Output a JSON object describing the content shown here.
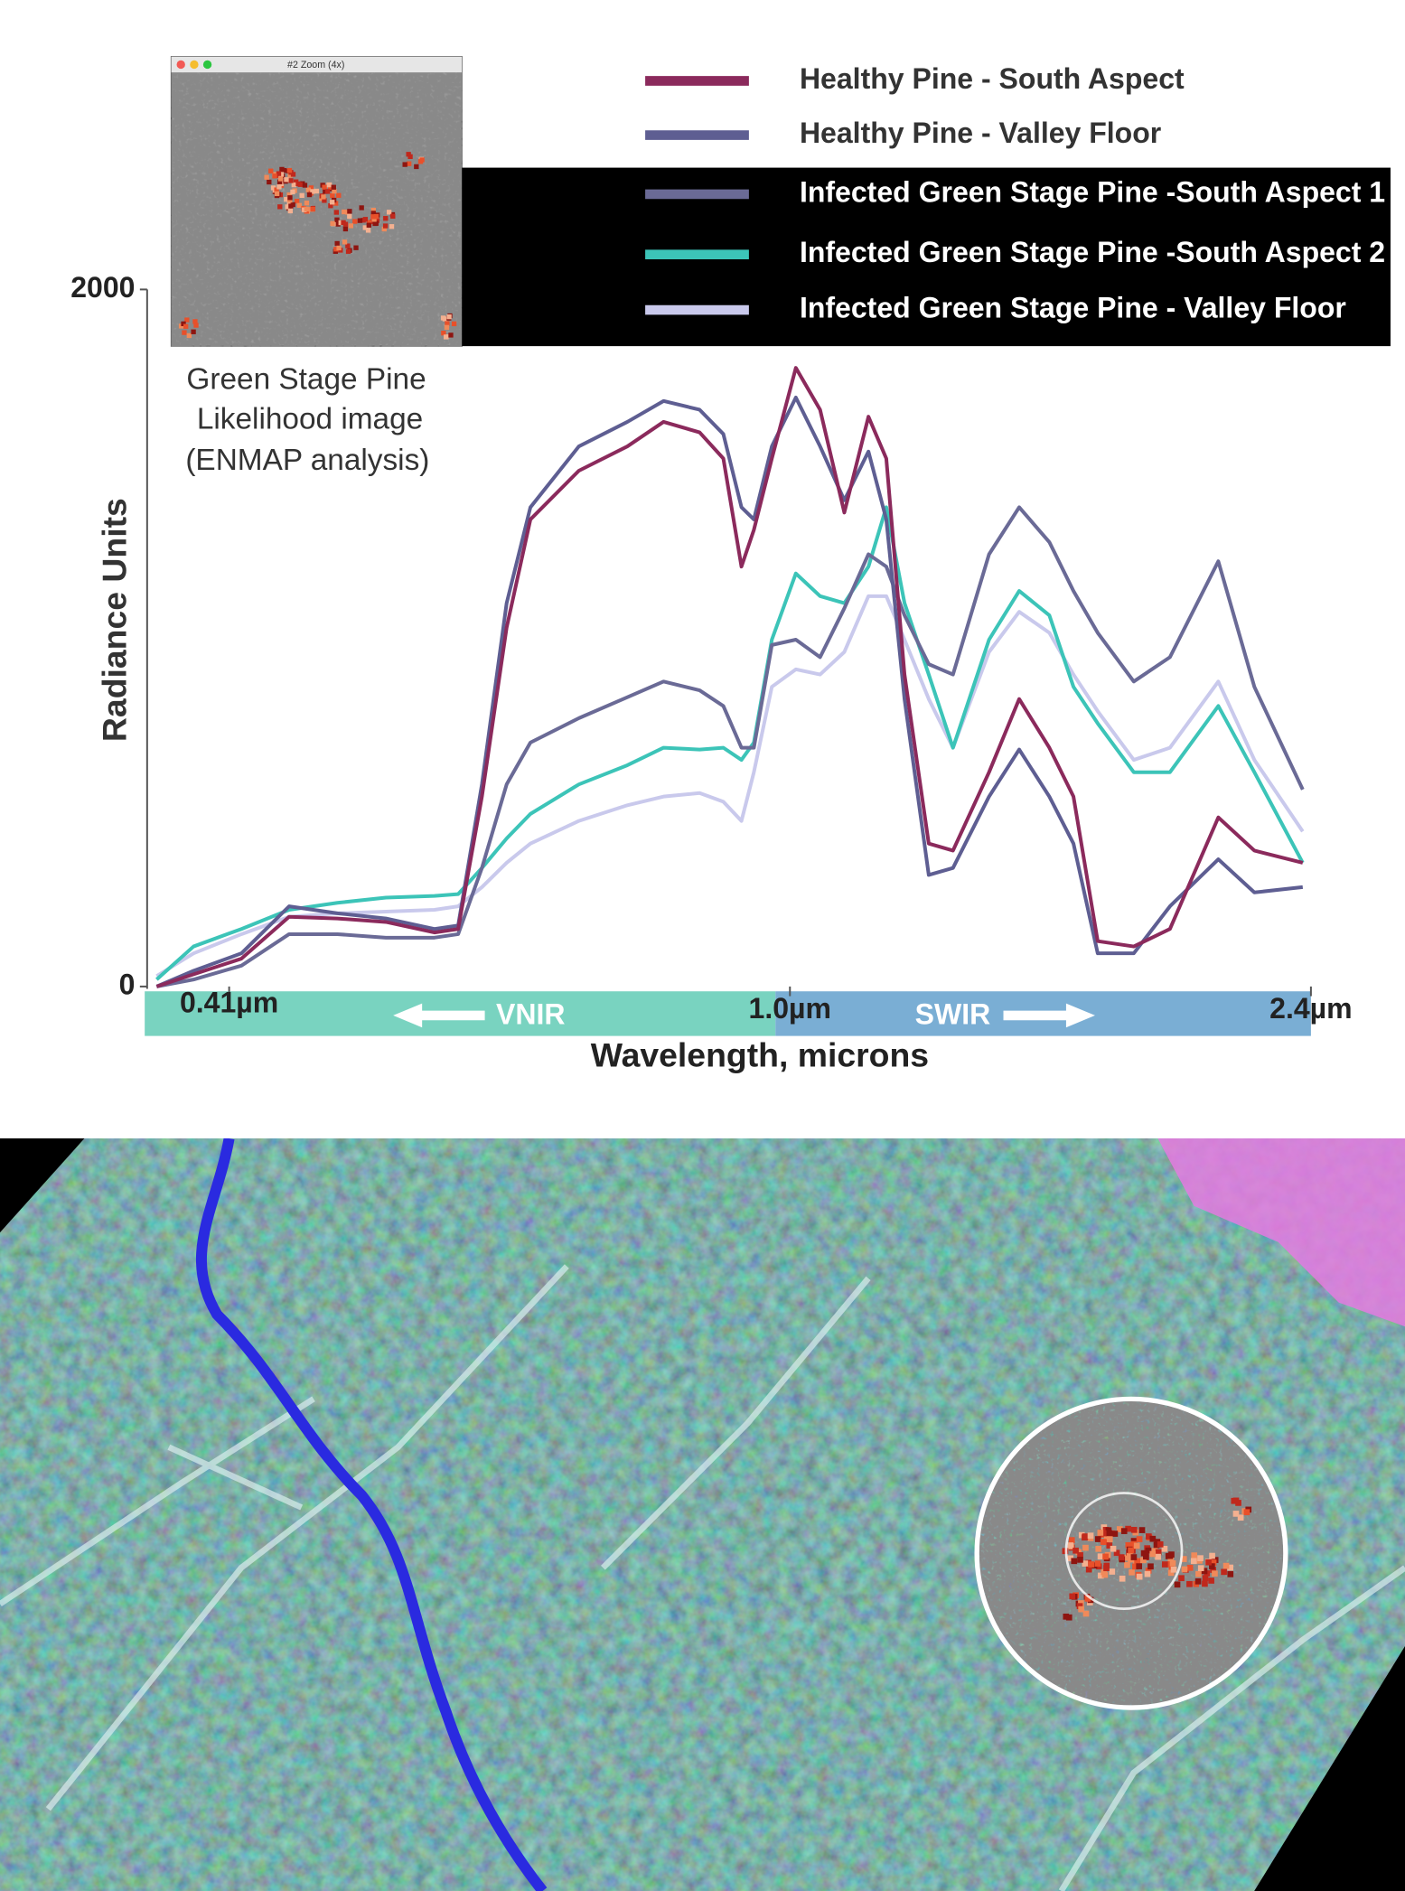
{
  "chart_data": {
    "type": "line",
    "x_label": "Wavelength, microns",
    "y_label": "Radiance Units",
    "zoom_window_title": "#2 Zoom (4x)",
    "inset_caption": [
      "Green Stage Pine",
      "Likelihood image",
      "(ENMAP analysis)"
    ],
    "region_labels": [
      "VNIR",
      "SWIR"
    ],
    "xlim": [
      0.35,
      2.4
    ],
    "xticks": [
      {
        "value": 0.41,
        "label": "0.41µm"
      },
      {
        "value": 1.0,
        "label": "1.0µm"
      },
      {
        "value": 2.4,
        "label": "2.4µm"
      }
    ],
    "ylim": [
      0,
      2000
    ],
    "yticks": [
      0,
      2000
    ],
    "x": [
      0.357,
      0.384,
      0.423,
      0.473,
      0.524,
      0.575,
      0.626,
      0.651,
      0.676,
      0.702,
      0.727,
      0.778,
      0.829,
      0.867,
      0.905,
      0.93,
      0.949,
      0.962,
      0.981,
      1.016,
      1.081,
      1.146,
      1.211,
      1.259,
      1.308,
      1.373,
      1.438,
      1.535,
      1.616,
      1.697,
      1.762,
      1.827,
      1.924,
      2.021,
      2.151,
      2.248,
      2.378
    ],
    "series": [
      {
        "name": "Healthy Pine - South Aspect",
        "color": "#8b2a5c",
        "values": [
          0,
          35,
          80,
          200,
          195,
          185,
          155,
          165,
          545,
          1030,
          1340,
          1480,
          1550,
          1620,
          1590,
          1515,
          1205,
          1310,
          1515,
          1775,
          1655,
          1360,
          1635,
          1515,
          895,
          410,
          390,
          615,
          825,
          685,
          545,
          130,
          115,
          165,
          485,
          390,
          355
        ]
      },
      {
        "name": "Healthy Pine - Valley Floor",
        "color": "#5e5e92",
        "values": [
          0,
          45,
          95,
          230,
          210,
          195,
          165,
          175,
          580,
          1100,
          1375,
          1550,
          1620,
          1680,
          1655,
          1585,
          1375,
          1340,
          1550,
          1690,
          1550,
          1395,
          1535,
          1340,
          825,
          320,
          340,
          545,
          680,
          545,
          410,
          95,
          95,
          230,
          365,
          270,
          285
        ]
      },
      {
        "name": "Infected Green Stage Pine -South Aspect 1",
        "color": "#6a6a96",
        "values": [
          0,
          20,
          60,
          150,
          150,
          140,
          140,
          150,
          340,
          580,
          700,
          770,
          830,
          875,
          850,
          805,
          685,
          685,
          980,
          995,
          945,
          1085,
          1240,
          1205,
          1065,
          925,
          895,
          1240,
          1375,
          1275,
          1135,
          1015,
          875,
          945,
          1220,
          860,
          565
        ]
      },
      {
        "name": "Infected Green Stage Pine -South Aspect 2",
        "color": "#3cc4b8",
        "values": [
          20,
          115,
          165,
          220,
          240,
          255,
          260,
          265,
          340,
          425,
          495,
          580,
          635,
          685,
          680,
          685,
          650,
          700,
          995,
          1185,
          1120,
          1100,
          1205,
          1375,
          1100,
          895,
          685,
          995,
          1135,
          1065,
          860,
          755,
          615,
          615,
          805,
          615,
          355
        ]
      },
      {
        "name": "Infected Green Stage Pine - Valley Floor",
        "color": "#c9c9ec",
        "values": [
          30,
          95,
          150,
          200,
          210,
          215,
          220,
          230,
          285,
          355,
          410,
          475,
          520,
          545,
          555,
          530,
          475,
          615,
          860,
          910,
          895,
          960,
          1120,
          1120,
          995,
          825,
          685,
          960,
          1075,
          1015,
          895,
          790,
          650,
          685,
          875,
          650,
          445
        ]
      }
    ]
  }
}
